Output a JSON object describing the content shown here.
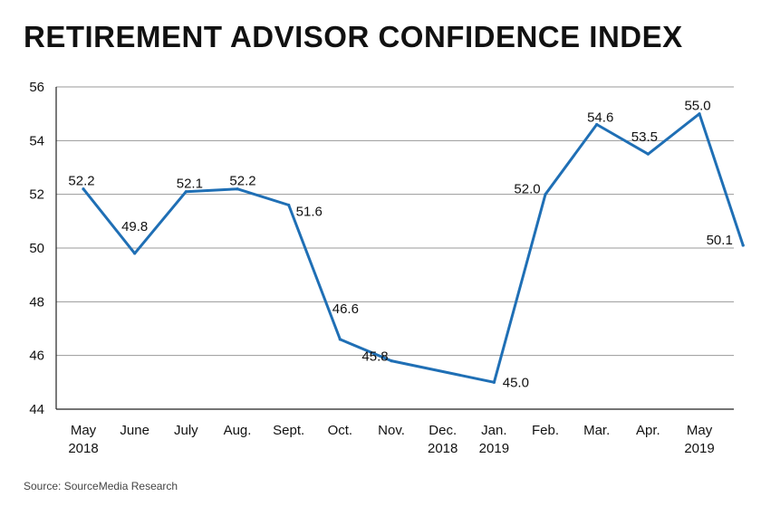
{
  "chart_data": {
    "type": "line",
    "title": "RETIREMENT ADVISOR CONFIDENCE INDEX",
    "xlabel": "",
    "ylabel": "",
    "ylim": [
      44,
      56
    ],
    "yticks": [
      "44",
      "46",
      "48",
      "50",
      "52",
      "54",
      "56"
    ],
    "grid": true,
    "categories": [
      [
        "May",
        "2018"
      ],
      [
        "June"
      ],
      [
        "July"
      ],
      [
        "Aug."
      ],
      [
        "Sept."
      ],
      [
        "Oct."
      ],
      [
        "Nov."
      ],
      [
        "Dec.",
        "2018"
      ],
      [
        "Jan.",
        "2019"
      ],
      [
        "Feb."
      ],
      [
        "Mar."
      ],
      [
        "Apr."
      ],
      [
        "May",
        "2019"
      ]
    ],
    "series": [
      {
        "name": "Retirement Advisor Confidence Index",
        "color": "#1f6fb5",
        "points": [
          {
            "x": 0,
            "y": 52.2,
            "label": "52.2"
          },
          {
            "x": 1,
            "y": 49.8,
            "label": "49.8"
          },
          {
            "x": 2,
            "y": 52.1,
            "label": "52.1"
          },
          {
            "x": 3,
            "y": 52.2,
            "label": "52.2"
          },
          {
            "x": 4,
            "y": 51.6,
            "label": "51.6"
          },
          {
            "x": 5,
            "y": 46.6,
            "label": "46.6"
          },
          {
            "x": 6,
            "y": 45.8,
            "label": "45.8"
          },
          {
            "x": 8,
            "y": 45.0,
            "label": "45.0"
          },
          {
            "x": 9,
            "y": 52.0,
            "label": "52.0"
          },
          {
            "x": 10,
            "y": 54.6,
            "label": "54.6"
          },
          {
            "x": 11,
            "y": 53.5,
            "label": "53.5"
          },
          {
            "x": 12,
            "y": 55.0,
            "label": "55.0"
          },
          {
            "x": 12.85,
            "y": 50.1,
            "label": "50.1"
          }
        ]
      }
    ],
    "source": "Source: SourceMedia Research"
  }
}
